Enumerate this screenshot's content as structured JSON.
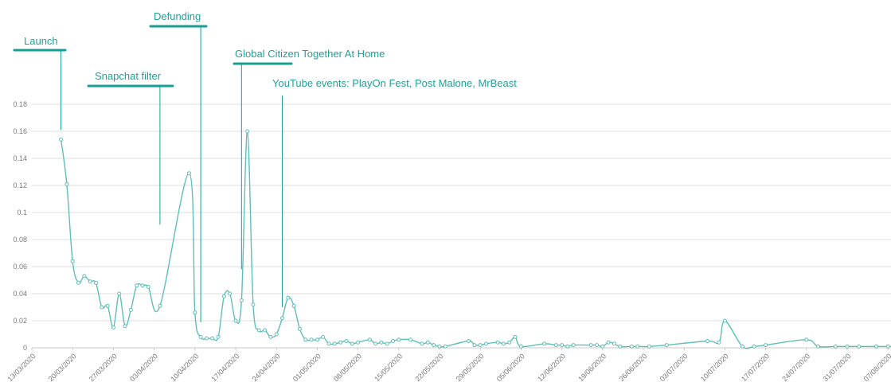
{
  "colors": {
    "line": "#5fbfb6",
    "annotation": "#16a092",
    "grid": "#dddddd",
    "axis_text": "#7a7a7a"
  },
  "chart_data": {
    "type": "line",
    "title": "",
    "xlabel": "",
    "ylabel": "",
    "ylim": [
      0,
      0.18
    ],
    "y_ticks": [
      0,
      0.02,
      0.04,
      0.06,
      0.08,
      0.1,
      0.12,
      0.14,
      0.16,
      0.18
    ],
    "y_tick_labels": [
      "0",
      "0.02",
      "0.04",
      "0.06",
      "0.08",
      "0.1",
      "0.12",
      "0.14",
      "0.16",
      "0.18"
    ],
    "grid": true,
    "x_tick_labels": [
      "13/03/2020",
      "20/03/2020",
      "27/03/2020",
      "03/04/2020",
      "10/04/2020",
      "17/04/2020",
      "24/04/2020",
      "01/05/2020",
      "08/05/2020",
      "15/05/2020",
      "22/05/2020",
      "29/05/2020",
      "05/06/2020",
      "12/06/2020",
      "19/06/2020",
      "26/06/2020",
      "03/07/2020",
      "10/07/2020",
      "17/07/2020",
      "24/07/2020",
      "31/07/2020",
      "07/08/2020"
    ],
    "series": [
      {
        "x": [
          "2020-03-18",
          "2020-03-19",
          "2020-03-20",
          "2020-03-21",
          "2020-03-22",
          "2020-03-23",
          "2020-03-24",
          "2020-03-25",
          "2020-03-26",
          "2020-03-27",
          "2020-03-28",
          "2020-03-29",
          "2020-03-30",
          "2020-03-31",
          "2020-04-01",
          "2020-04-02",
          "2020-04-04",
          "2020-04-09",
          "2020-04-10",
          "2020-04-11",
          "2020-04-12",
          "2020-04-13",
          "2020-04-14",
          "2020-04-15",
          "2020-04-16",
          "2020-04-17",
          "2020-04-18",
          "2020-04-19",
          "2020-04-20",
          "2020-04-21",
          "2020-04-22",
          "2020-04-23",
          "2020-04-24",
          "2020-04-25",
          "2020-04-26",
          "2020-04-27",
          "2020-04-28",
          "2020-04-29",
          "2020-04-30",
          "2020-05-01",
          "2020-05-02",
          "2020-05-03",
          "2020-05-04",
          "2020-05-05",
          "2020-05-06",
          "2020-05-07",
          "2020-05-08",
          "2020-05-10",
          "2020-05-11",
          "2020-05-12",
          "2020-05-13",
          "2020-05-14",
          "2020-05-15",
          "2020-05-17",
          "2020-05-19",
          "2020-05-20",
          "2020-05-21",
          "2020-05-22",
          "2020-05-23",
          "2020-05-27",
          "2020-05-28",
          "2020-05-29",
          "2020-05-30",
          "2020-06-01",
          "2020-06-02",
          "2020-06-03",
          "2020-06-04",
          "2020-06-05",
          "2020-06-09",
          "2020-06-11",
          "2020-06-12",
          "2020-06-13",
          "2020-06-14",
          "2020-06-17",
          "2020-06-18",
          "2020-06-19",
          "2020-06-20",
          "2020-06-21",
          "2020-06-22",
          "2020-06-24",
          "2020-06-25",
          "2020-06-27",
          "2020-06-30",
          "2020-07-07",
          "2020-07-09",
          "2020-07-10",
          "2020-07-13",
          "2020-07-15",
          "2020-07-17",
          "2020-07-24",
          "2020-07-26",
          "2020-07-29",
          "2020-07-31",
          "2020-08-02",
          "2020-08-05",
          "2020-08-07",
          "2020-08-08"
        ],
        "y": [
          0.154,
          0.121,
          0.064,
          0.048,
          0.053,
          0.049,
          0.048,
          0.03,
          0.031,
          0.015,
          0.04,
          0.016,
          0.028,
          0.046,
          0.046,
          0.045,
          0.031,
          0.129,
          0.026,
          0.008,
          0.007,
          0.007,
          0.008,
          0.038,
          0.04,
          0.02,
          0.035,
          0.16,
          0.032,
          0.013,
          0.013,
          0.008,
          0.01,
          0.022,
          0.037,
          0.031,
          0.014,
          0.006,
          0.006,
          0.006,
          0.008,
          0.003,
          0.003,
          0.004,
          0.005,
          0.003,
          0.004,
          0.006,
          0.003,
          0.004,
          0.003,
          0.005,
          0.006,
          0.006,
          0.003,
          0.004,
          0.002,
          0.001,
          0.001,
          0.005,
          0.002,
          0.002,
          0.003,
          0.004,
          0.003,
          0.004,
          0.008,
          0.001,
          0.003,
          0.002,
          0.002,
          0.001,
          0.002,
          0.002,
          0.002,
          0.001,
          0.004,
          0.003,
          0.001,
          0.001,
          0.001,
          0.001,
          0.002,
          0.005,
          0.004,
          0.02,
          0.001,
          0.001,
          0.002,
          0.006,
          0.001,
          0.001,
          0.001,
          0.001,
          0.001,
          0.001,
          0.001
        ]
      }
    ],
    "annotations": [
      {
        "label": "Launch",
        "date": "2020-03-18",
        "y_from": 0.161
      },
      {
        "label": "Snapchat filter",
        "date": "2020-04-04",
        "y_from": 0.091
      },
      {
        "label": "Defunding",
        "date": "2020-04-11",
        "y_from": 0.019
      },
      {
        "label": "Global Citizen Together At Home",
        "date": "2020-04-18",
        "y_from": 0.058
      },
      {
        "label": "YouTube events: PlayOn Fest, Post Malone, MrBeast",
        "date": "2020-04-25",
        "y_from": 0.03
      }
    ]
  }
}
